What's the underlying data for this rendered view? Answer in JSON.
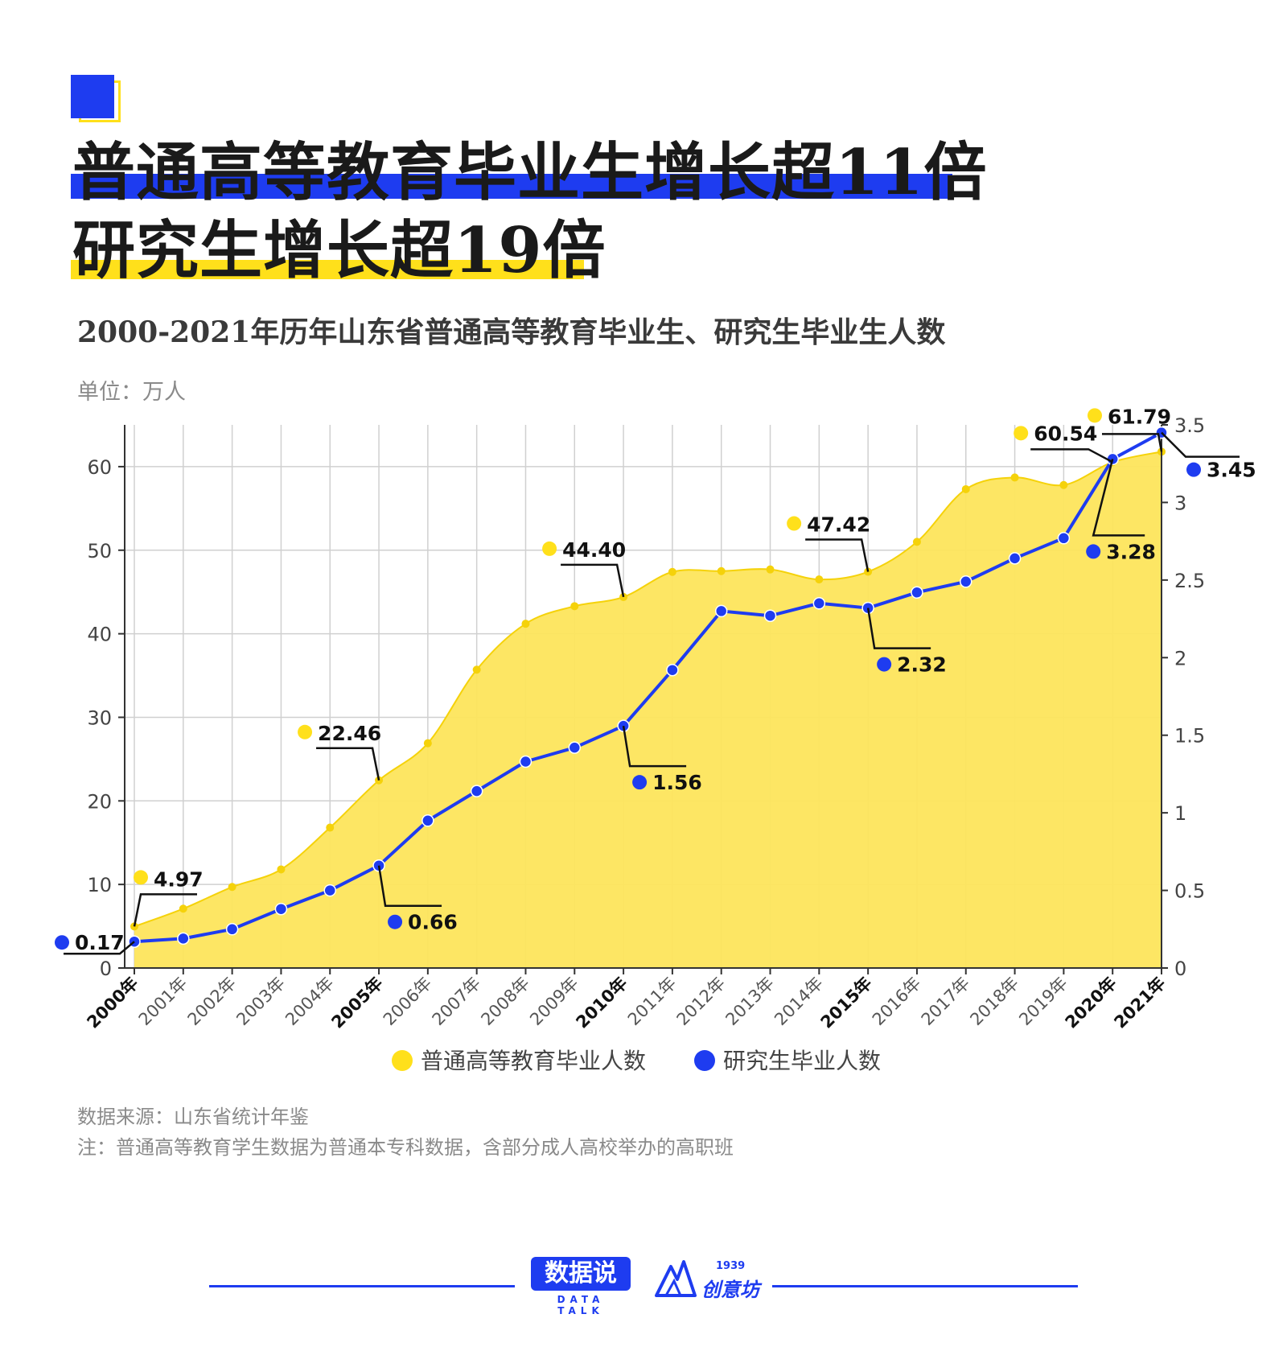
{
  "title": {
    "line1": "普通高等教育毕业生增长超11倍",
    "line2": "研究生增长超19倍"
  },
  "subtitle": "2000-2021年历年山东省普通高等教育毕业生、研究生毕业生人数",
  "unit": "单位：万人",
  "colors": {
    "accent_blue": "#1e3cf0",
    "accent_yellow": "#ffe01b",
    "area_fill": "#fde55c",
    "area_line": "#f5d20a"
  },
  "chart_data": {
    "type": "area",
    "categories": [
      "2000年",
      "2001年",
      "2002年",
      "2003年",
      "2004年",
      "2005年",
      "2006年",
      "2007年",
      "2008年",
      "2009年",
      "2010年",
      "2011年",
      "2012年",
      "2013年",
      "2014年",
      "2015年",
      "2016年",
      "2017年",
      "2018年",
      "2019年",
      "2020年",
      "2021年"
    ],
    "bold_categories": [
      "2000年",
      "2005年",
      "2010年",
      "2015年",
      "2020年",
      "2021年"
    ],
    "series": [
      {
        "name": "普通高等教育毕业人数",
        "axis": "left",
        "color": "#fde55c",
        "values": [
          4.97,
          7.1,
          9.7,
          11.8,
          16.8,
          22.46,
          26.9,
          35.7,
          41.2,
          43.3,
          44.4,
          47.4,
          47.5,
          47.7,
          46.5,
          47.42,
          51.0,
          57.3,
          58.7,
          57.8,
          60.54,
          61.79
        ]
      },
      {
        "name": "研究生毕业人数",
        "axis": "right",
        "color": "#1e3cf0",
        "values": [
          0.17,
          0.19,
          0.25,
          0.38,
          0.5,
          0.66,
          0.95,
          1.14,
          1.33,
          1.42,
          1.56,
          1.92,
          2.3,
          2.27,
          2.35,
          2.32,
          2.42,
          2.49,
          2.64,
          2.77,
          3.28,
          3.45
        ]
      }
    ],
    "y_left": {
      "min": 0,
      "max": 65,
      "ticks": [
        "0",
        "10",
        "20",
        "30",
        "40",
        "50",
        "60"
      ]
    },
    "y_right": {
      "min": 0,
      "max": 3.5,
      "ticks": [
        "0",
        "0.5",
        "1",
        "1.5",
        "2",
        "2.5",
        "3",
        "3.5"
      ]
    },
    "annotations": [
      {
        "series": 0,
        "index": 0,
        "text": "4.97"
      },
      {
        "series": 0,
        "index": 5,
        "text": "22.46"
      },
      {
        "series": 0,
        "index": 10,
        "text": "44.40"
      },
      {
        "series": 0,
        "index": 15,
        "text": "47.42"
      },
      {
        "series": 0,
        "index": 20,
        "text": "60.54"
      },
      {
        "series": 0,
        "index": 21,
        "text": "61.79"
      },
      {
        "series": 1,
        "index": 0,
        "text": "0.17"
      },
      {
        "series": 1,
        "index": 5,
        "text": "0.66"
      },
      {
        "series": 1,
        "index": 10,
        "text": "1.56"
      },
      {
        "series": 1,
        "index": 15,
        "text": "2.32"
      },
      {
        "series": 1,
        "index": 20,
        "text": "3.28"
      },
      {
        "series": 1,
        "index": 21,
        "text": "3.45"
      }
    ],
    "grid": true,
    "legend_position": "bottom"
  },
  "source": "数据来源：山东省统计年鉴",
  "note": "注：普通高等教育学生数据为普通本专科数据，含部分成人高校举办的高职班",
  "footer": {
    "logo1": "数据说",
    "logo1_sub": "DATA TALK",
    "logo2_year": "1939",
    "logo2_text": "创意坊"
  }
}
